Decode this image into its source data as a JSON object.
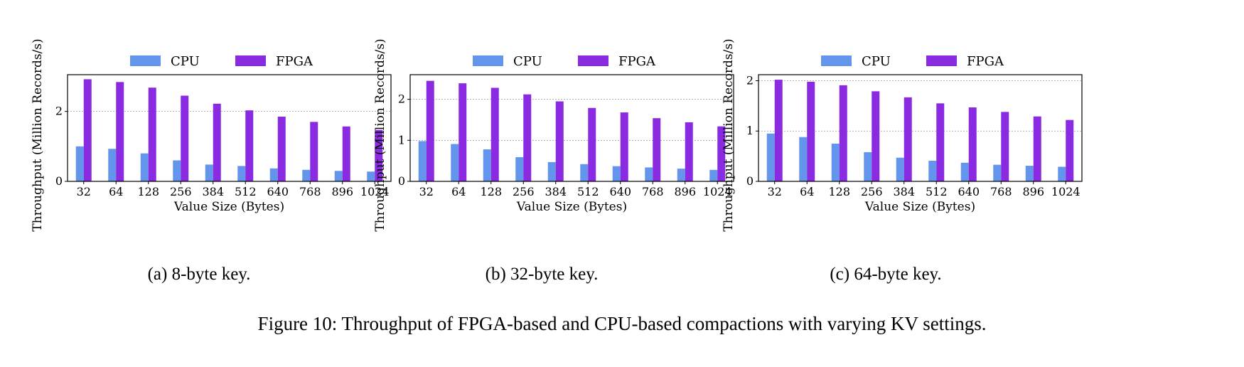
{
  "figure_caption": "Figure 10: Throughput of FPGA-based and CPU-based compactions with varying KV settings.",
  "colors": {
    "cpu": "#6495ed",
    "fpga": "#8a2be2",
    "grid": "#9a9a9a"
  },
  "subcaptions": [
    {
      "label": "(a)",
      "text": "8-byte key."
    },
    {
      "label": "(b)",
      "text": "32-byte key."
    },
    {
      "label": "(c)",
      "text": "64-byte key."
    }
  ],
  "chart_data": [
    {
      "type": "bar",
      "title": "(a) 8-byte key.",
      "xlabel": "Value Size (Bytes)",
      "ylabel": "Throughput (Million Records/s)",
      "categories": [
        "32",
        "64",
        "128",
        "256",
        "384",
        "512",
        "640",
        "768",
        "896",
        "1024"
      ],
      "ylim": [
        0,
        3.05
      ],
      "yticks": [
        0,
        2
      ],
      "grid": true,
      "legend": "top-center",
      "series": [
        {
          "name": "CPU",
          "values": [
            1.0,
            0.93,
            0.8,
            0.6,
            0.48,
            0.44,
            0.37,
            0.33,
            0.3,
            0.28
          ]
        },
        {
          "name": "FPGA",
          "values": [
            2.92,
            2.84,
            2.68,
            2.45,
            2.22,
            2.03,
            1.85,
            1.7,
            1.57,
            1.47
          ]
        }
      ]
    },
    {
      "type": "bar",
      "title": "(b) 32-byte key.",
      "xlabel": "Value Size (Bytes)",
      "ylabel": "Throughput (Million Records/s)",
      "categories": [
        "32",
        "64",
        "128",
        "256",
        "384",
        "512",
        "640",
        "768",
        "896",
        "1024"
      ],
      "ylim": [
        0,
        2.6
      ],
      "yticks": [
        0,
        1,
        2
      ],
      "grid": true,
      "legend": "top-center",
      "series": [
        {
          "name": "CPU",
          "values": [
            0.98,
            0.91,
            0.78,
            0.59,
            0.47,
            0.42,
            0.37,
            0.34,
            0.31,
            0.28
          ]
        },
        {
          "name": "FPGA",
          "values": [
            2.45,
            2.39,
            2.28,
            2.12,
            1.95,
            1.79,
            1.68,
            1.54,
            1.44,
            1.34
          ]
        }
      ]
    },
    {
      "type": "bar",
      "title": "(c) 64-byte key.",
      "xlabel": "Value Size (Bytes)",
      "ylabel": "Throughput (Million Records/s)",
      "categories": [
        "32",
        "64",
        "128",
        "256",
        "384",
        "512",
        "640",
        "768",
        "896",
        "1024"
      ],
      "ylim": [
        0,
        2.12
      ],
      "yticks": [
        0,
        1,
        2
      ],
      "grid": true,
      "legend": "top-center",
      "series": [
        {
          "name": "CPU",
          "values": [
            0.95,
            0.88,
            0.75,
            0.58,
            0.47,
            0.41,
            0.37,
            0.33,
            0.31,
            0.29
          ]
        },
        {
          "name": "FPGA",
          "values": [
            2.02,
            1.98,
            1.91,
            1.79,
            1.67,
            1.55,
            1.47,
            1.38,
            1.29,
            1.22
          ]
        }
      ]
    }
  ]
}
